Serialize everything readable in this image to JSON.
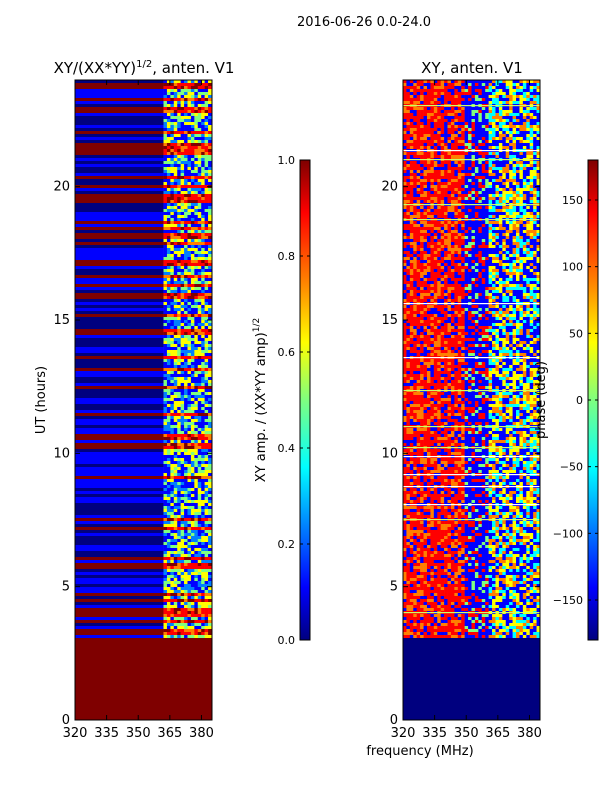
{
  "suptitle": "2016-06-26 0.0-24.0",
  "colors": {
    "jet": [
      "#00007f",
      "#0000ff",
      "#007fff",
      "#00ffff",
      "#7fff7f",
      "#ffff00",
      "#ff7f00",
      "#ff0000",
      "#7f0000"
    ],
    "empty_region": "#7f0000",
    "empty_region_phase": "#00007f",
    "axis": "#000000"
  },
  "chart_data": [
    {
      "type": "heatmap",
      "title_main": "XY/(XX*YY)",
      "title_sup": "1/2",
      "title_rest": ", anten. V1",
      "xlabel": "",
      "ylabel": "UT (hours)",
      "xlim": [
        320,
        385
      ],
      "ylim": [
        0,
        24
      ],
      "xticks": [
        "320",
        "335",
        "350",
        "365",
        "380"
      ],
      "xtick_values": [
        320,
        335,
        350,
        365,
        380
      ],
      "yticks": [
        "0",
        "5",
        "10",
        "15",
        "20"
      ],
      "ytick_values": [
        0,
        5,
        10,
        15,
        20
      ],
      "data_start_hour": 3.1,
      "rfi_band_start_mhz": 362,
      "colorbar": {
        "label_main": "XY amp. / (XX*YY amp)",
        "label_sup": "1/2",
        "range": [
          0.0,
          1.0
        ],
        "ticks": [
          "0.0",
          "0.2",
          "0.4",
          "0.6",
          "0.8",
          "1.0"
        ],
        "tick_values": [
          0.0,
          0.2,
          0.4,
          0.6,
          0.8,
          1.0
        ]
      }
    },
    {
      "type": "heatmap",
      "title_main": "XY, anten. V1",
      "xlabel": "frequency (MHz)",
      "ylabel": "",
      "xlim": [
        320,
        385
      ],
      "ylim": [
        0,
        24
      ],
      "xticks": [
        "320",
        "335",
        "350",
        "365",
        "380"
      ],
      "xtick_values": [
        320,
        335,
        350,
        365,
        380
      ],
      "yticks": [
        "0",
        "5",
        "10",
        "15",
        "20"
      ],
      "ytick_values": [
        0,
        5,
        10,
        15,
        20
      ],
      "data_start_hour": 3.1,
      "colorbar": {
        "label_main": "phase (deg)",
        "range": [
          -180,
          180
        ],
        "ticks": [
          "−150",
          "−100",
          "−50",
          "0",
          "50",
          "100",
          "150"
        ],
        "tick_values": [
          -150,
          -100,
          -50,
          0,
          50,
          100,
          150
        ]
      }
    }
  ]
}
